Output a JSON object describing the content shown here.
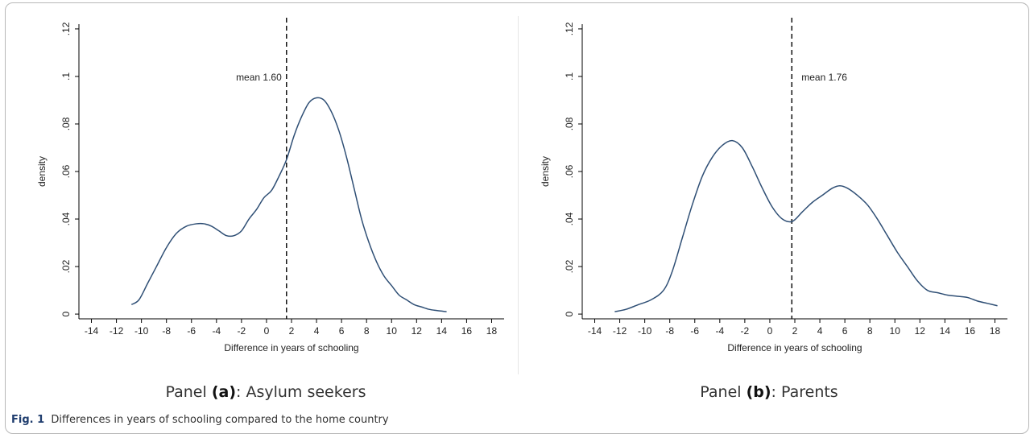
{
  "chart_data": [
    {
      "type": "line",
      "xlabel": "Difference in years of schooling",
      "ylabel": "density",
      "xlim": [
        -15,
        19
      ],
      "ylim": [
        -0.002,
        0.122
      ],
      "xticks": [
        -14,
        -12,
        -10,
        -8,
        -6,
        -4,
        -2,
        0,
        2,
        4,
        6,
        8,
        10,
        12,
        14,
        16,
        18
      ],
      "yticks": [
        0,
        0.02,
        0.04,
        0.06,
        0.08,
        0.1,
        0.12
      ],
      "ytick_labels": [
        "0",
        ".02",
        ".04",
        ".06",
        ".08",
        ".1",
        ".12"
      ],
      "color": "#2f4f75",
      "mean_line": {
        "x": 1.6,
        "label": "mean 1.60"
      },
      "series": [
        {
          "x": [
            -10.8,
            -10.2,
            -9.5,
            -8.8,
            -8,
            -7.2,
            -6.4,
            -5.6,
            -5,
            -4.4,
            -3.8,
            -3.2,
            -2.6,
            -2,
            -1.4,
            -0.8,
            -0.2,
            0.4,
            1,
            1.6,
            2.2,
            2.8,
            3.4,
            4,
            4.6,
            5.2,
            5.8,
            6.4,
            7,
            7.6,
            8.2,
            8.8,
            9.4,
            10,
            10.6,
            11.2,
            11.8,
            12.4,
            13,
            13.6,
            14.4
          ],
          "y": [
            0.004,
            0.006,
            0.013,
            0.02,
            0.028,
            0.034,
            0.037,
            0.038,
            0.038,
            0.037,
            0.035,
            0.033,
            0.033,
            0.035,
            0.04,
            0.044,
            0.049,
            0.052,
            0.058,
            0.065,
            0.075,
            0.083,
            0.089,
            0.091,
            0.09,
            0.085,
            0.077,
            0.066,
            0.053,
            0.04,
            0.03,
            0.022,
            0.016,
            0.012,
            0.008,
            0.006,
            0.004,
            0.003,
            0.002,
            0.0015,
            0.001
          ]
        }
      ]
    },
    {
      "type": "line",
      "xlabel": "Difference in years of schooling",
      "ylabel": "density",
      "xlim": [
        -15,
        19
      ],
      "ylim": [
        -0.002,
        0.122
      ],
      "xticks": [
        -14,
        -12,
        -10,
        -8,
        -6,
        -4,
        -2,
        0,
        2,
        4,
        6,
        8,
        10,
        12,
        14,
        16,
        18
      ],
      "yticks": [
        0,
        0.02,
        0.04,
        0.06,
        0.08,
        0.1,
        0.12
      ],
      "ytick_labels": [
        "0",
        ".02",
        ".04",
        ".06",
        ".08",
        ".1",
        ".12"
      ],
      "color": "#2f4f75",
      "mean_line": {
        "x": 1.76,
        "label": "mean 1.76"
      },
      "series": [
        {
          "x": [
            -12.4,
            -11.5,
            -10.5,
            -9.5,
            -8.5,
            -7.8,
            -7,
            -6.2,
            -5.4,
            -4.6,
            -3.8,
            -3,
            -2.2,
            -1.4,
            -0.6,
            0.2,
            1,
            1.8,
            2.6,
            3.4,
            4.2,
            5,
            5.6,
            6.2,
            7,
            7.8,
            8.6,
            9.4,
            10.2,
            11,
            11.8,
            12.6,
            13.4,
            14.2,
            15,
            15.8,
            16.6,
            17.4,
            18.2
          ],
          "y": [
            0.001,
            0.002,
            0.004,
            0.006,
            0.01,
            0.018,
            0.032,
            0.046,
            0.058,
            0.066,
            0.071,
            0.073,
            0.07,
            0.062,
            0.053,
            0.045,
            0.04,
            0.039,
            0.043,
            0.047,
            0.05,
            0.053,
            0.054,
            0.053,
            0.05,
            0.046,
            0.04,
            0.033,
            0.026,
            0.02,
            0.014,
            0.01,
            0.009,
            0.008,
            0.0075,
            0.007,
            0.0055,
            0.0045,
            0.0035
          ]
        }
      ]
    }
  ],
  "panels": [
    {
      "prefix": "Panel ",
      "letter": "(a)",
      "suffix": ": Asylum seekers"
    },
    {
      "prefix": "Panel ",
      "letter": "(b)",
      "suffix": ": Parents"
    }
  ],
  "caption": {
    "label": "Fig. 1",
    "text": "Differences in years of schooling compared to the home country"
  }
}
